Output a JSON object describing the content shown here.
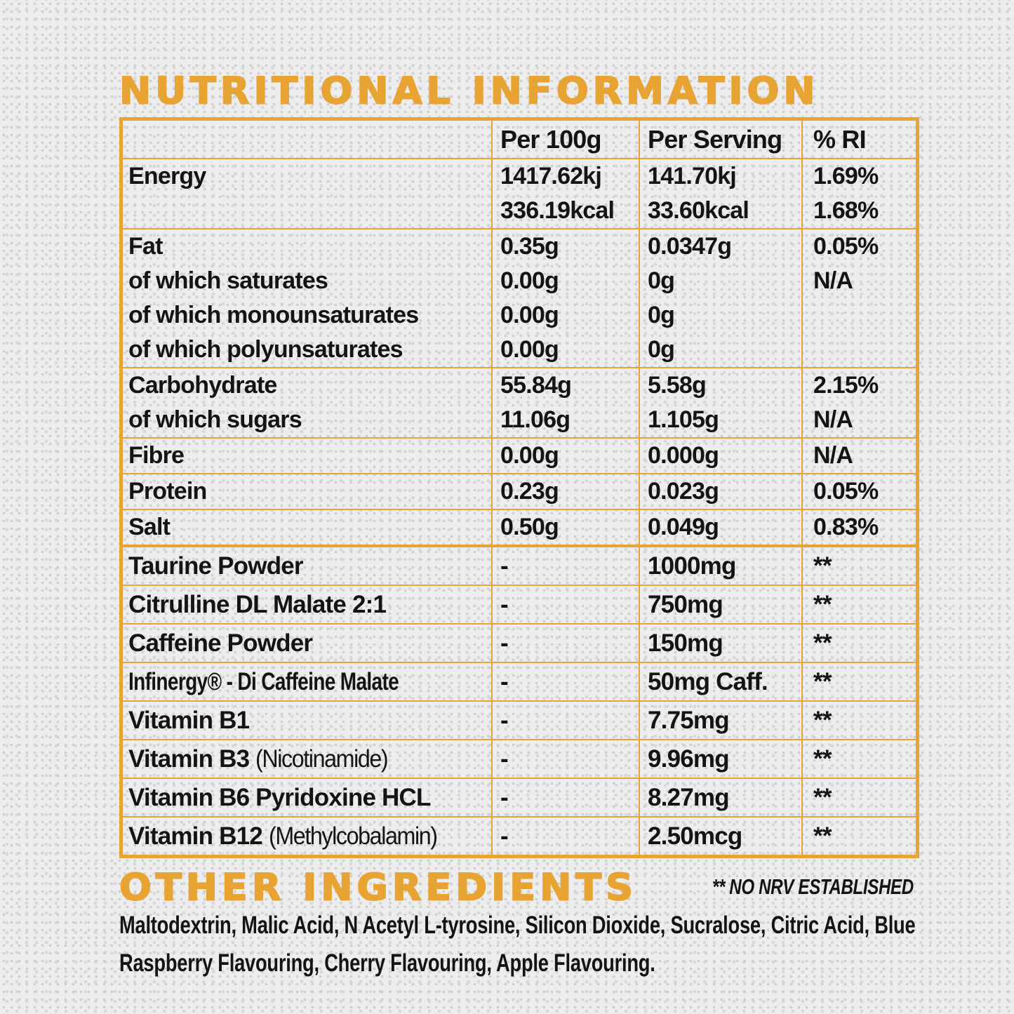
{
  "title": "NUTRITIONAL INFORMATION",
  "table": {
    "headers": [
      "",
      "Per 100g",
      "Per Serving",
      "% RI"
    ],
    "groups": [
      {
        "type": "nutrient",
        "lines": [
          {
            "label": "Energy",
            "per100": "1417.62kj",
            "serving": "141.70kj",
            "ri": "1.69%"
          },
          {
            "label": "",
            "per100": "336.19kcal",
            "serving": "33.60kcal",
            "ri": "1.68%"
          }
        ]
      },
      {
        "type": "nutrient",
        "lines": [
          {
            "label": "Fat",
            "per100": "0.35g",
            "serving": "0.0347g",
            "ri": "0.05%"
          },
          {
            "label": "of which saturates",
            "per100": "0.00g",
            "serving": "0g",
            "ri": "N/A"
          },
          {
            "label": "of which monounsaturates",
            "per100": "0.00g",
            "serving": "0g",
            "ri": ""
          },
          {
            "label": "of which polyunsaturates",
            "per100": "0.00g",
            "serving": "0g",
            "ri": ""
          }
        ]
      },
      {
        "type": "nutrient",
        "lines": [
          {
            "label": "Carbohydrate",
            "per100": "55.84g",
            "serving": "5.58g",
            "ri": "2.15%"
          },
          {
            "label": "of which sugars",
            "per100": "11.06g",
            "serving": "1.105g",
            "ri": "N/A"
          }
        ]
      },
      {
        "type": "nutrient",
        "lines": [
          {
            "label": "Fibre",
            "per100": "0.00g",
            "serving": "0.000g",
            "ri": "N/A"
          }
        ]
      },
      {
        "type": "nutrient",
        "lines": [
          {
            "label": "Protein",
            "per100": "0.23g",
            "serving": "0.023g",
            "ri": "0.05%"
          }
        ]
      },
      {
        "type": "nutrient",
        "lines": [
          {
            "label": "Salt",
            "per100": "0.50g",
            "serving": "0.049g",
            "ri": "0.83%"
          }
        ]
      },
      {
        "type": "active",
        "thick_top": true,
        "lines": [
          {
            "label": "Taurine Powder",
            "per100": "-",
            "serving": "1000mg",
            "ri": "**"
          }
        ]
      },
      {
        "type": "active",
        "lines": [
          {
            "label": "Citrulline DL Malate 2:1",
            "per100": "-",
            "serving": "750mg",
            "ri": "**"
          }
        ]
      },
      {
        "type": "active",
        "lines": [
          {
            "label": "Caffeine Powder",
            "per100": "-",
            "serving": "150mg",
            "ri": "**"
          }
        ]
      },
      {
        "type": "active",
        "lines": [
          {
            "label": "Infinergy® - Di Caffeine Malate",
            "condensed": true,
            "per100": "-",
            "serving": "50mg Caff.",
            "ri": "**"
          }
        ]
      },
      {
        "type": "active",
        "lines": [
          {
            "label": "Vitamin B1",
            "per100": "-",
            "serving": "7.75mg",
            "ri": "**"
          }
        ]
      },
      {
        "type": "active",
        "lines": [
          {
            "label": "Vitamin B3",
            "note": "(Nicotinamide)",
            "per100": "-",
            "serving": "9.96mg",
            "ri": "**"
          }
        ]
      },
      {
        "type": "active",
        "lines": [
          {
            "label": "Vitamin B6 Pyridoxine HCL",
            "per100": "-",
            "serving": "8.27mg",
            "ri": "**"
          }
        ]
      },
      {
        "type": "active",
        "lines": [
          {
            "label": "Vitamin B12",
            "note": "(Methylcobalamin)",
            "per100": "-",
            "serving": "2.50mcg",
            "ri": "**"
          }
        ]
      }
    ]
  },
  "footnote": "** NO NRV ESTABLISHED",
  "other_ingredients": {
    "heading": "OTHER INGREDIENTS",
    "text": "Maltodextrin, Malic Acid, N Acetyl L-tyrosine, Silicon Dioxide, Sucralose, Citric Acid, Blue Raspberry Flavouring, Cherry Flavouring, Apple Flavouring."
  },
  "colors": {
    "accent_orange": "#E8A432",
    "text": "#141414",
    "background": "#EDEDED",
    "halftone_dot": "#CFCFCF"
  }
}
